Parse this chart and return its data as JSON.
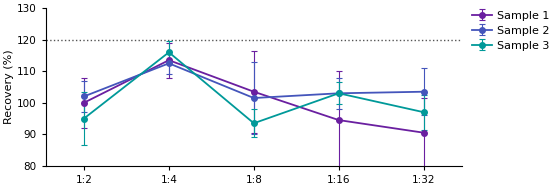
{
  "x_labels": [
    "1:2",
    "1:4",
    "1:8",
    "1:16",
    "1:32"
  ],
  "x_values": [
    0,
    1,
    2,
    3,
    4
  ],
  "series": [
    {
      "name": "Sample 1",
      "color": "#6A1FA0",
      "values": [
        100.0,
        113.5,
        103.5,
        94.5,
        90.5
      ],
      "errors": [
        8.0,
        5.5,
        13.0,
        15.5,
        11.0
      ]
    },
    {
      "name": "Sample 2",
      "color": "#4455BB",
      "values": [
        102.0,
        112.5,
        101.5,
        103.0,
        103.5
      ],
      "errors": [
        5.0,
        3.5,
        11.5,
        5.0,
        7.5
      ]
    },
    {
      "name": "Sample 3",
      "color": "#009999",
      "values": [
        95.0,
        116.0,
        93.5,
        103.0,
        97.0
      ],
      "errors": [
        8.5,
        3.5,
        4.5,
        3.5,
        5.5
      ]
    }
  ],
  "ylabel": "Recovery (%)",
  "ylim": [
    80,
    130
  ],
  "yticks": [
    80,
    90,
    100,
    110,
    120,
    130
  ],
  "hline_y": 120,
  "background_color": "#ffffff",
  "marker": "o",
  "markersize": 4,
  "linewidth": 1.3,
  "capsize": 2.5,
  "tick_fontsize": 7.5,
  "label_fontsize": 8,
  "legend_fontsize": 8
}
